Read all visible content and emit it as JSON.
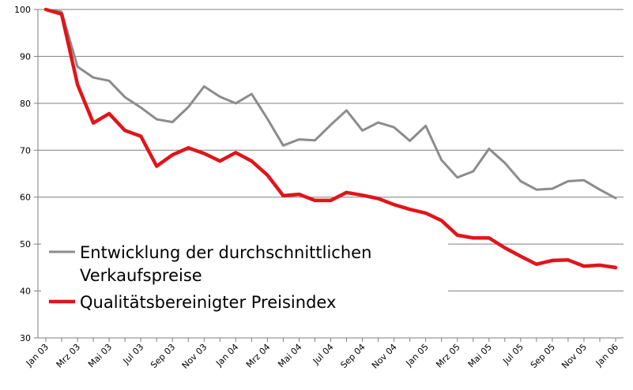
{
  "chart_data": {
    "type": "line",
    "x": [
      "Jan 03",
      "Feb 03",
      "Mrz 03",
      "Apr 03",
      "Mai 03",
      "Jun 03",
      "Jul 03",
      "Aug 03",
      "Sep 03",
      "Okt 03",
      "Nov 03",
      "Dez 03",
      "Jan 04",
      "Feb 04",
      "Mrz 04",
      "Apr 04",
      "Mai 04",
      "Jun 04",
      "Jul 04",
      "Aug 04",
      "Sep 04",
      "Okt 04",
      "Nov 04",
      "Dez 04",
      "Jan 05",
      "Feb 05",
      "Mrz 05",
      "Apr 05",
      "Mai 05",
      "Jun 05",
      "Jul 05",
      "Aug 05",
      "Sep 05",
      "Okt 05",
      "Nov 05",
      "Dez 05",
      "Jan 06"
    ],
    "xtick_labels": [
      "Jan 03",
      "Mrz 03",
      "Mai 03",
      "Jul 03",
      "Sep 03",
      "Nov 03",
      "Jan 04",
      "Mrz 04",
      "Mai 04",
      "Jul 04",
      "Sep 04",
      "Nov 04",
      "Jan 05",
      "Mrz 05",
      "Mai 05",
      "Jul 05",
      "Sep 05",
      "Nov 05",
      "Jan 06"
    ],
    "ylim": [
      30,
      100
    ],
    "yticks": [
      30,
      40,
      50,
      60,
      70,
      80,
      90,
      100
    ],
    "grid": "horizontal",
    "legend_position": "lower-left",
    "series": [
      {
        "name": "Entwicklung der durchschnittlichen Verkaufspreise",
        "color": "#8c8c8c",
        "values": [
          100,
          99.5,
          87.8,
          85.5,
          84.8,
          81.3,
          79.1,
          76.6,
          76,
          79.2,
          83.6,
          81.4,
          80,
          82,
          76.7,
          71,
          72.3,
          72.1,
          75.4,
          78.5,
          74.2,
          75.9,
          74.9,
          72,
          75.2,
          67.9,
          64.2,
          65.5,
          70.3,
          67.3,
          63.4,
          61.6,
          61.8,
          63.4,
          63.6,
          61.6,
          59.8
        ]
      },
      {
        "name": "Qualitätsbereinigter Preisindex",
        "color": "#e0151a",
        "values": [
          100,
          99,
          84,
          75.8,
          77.8,
          74.2,
          73,
          66.6,
          69,
          70.5,
          69.3,
          67.7,
          69.5,
          67.7,
          64.7,
          60.3,
          60.6,
          59.3,
          59.3,
          61,
          60.4,
          59.7,
          58.4,
          57.4,
          56.6,
          55,
          51.9,
          51.3,
          51.3,
          49.2,
          47.4,
          45.7,
          46.5,
          46.6,
          45.3,
          45.5,
          45
        ]
      }
    ]
  }
}
